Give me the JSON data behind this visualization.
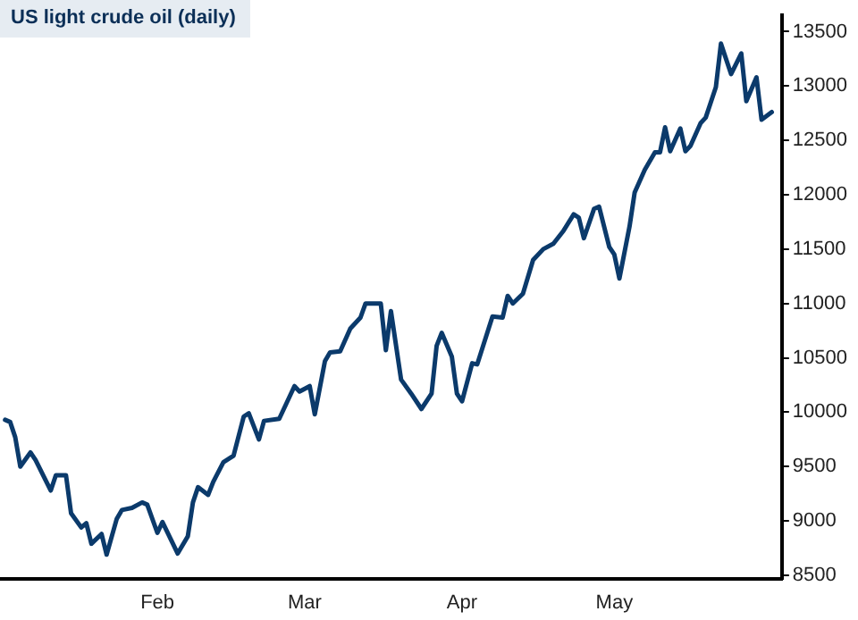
{
  "chart_data": {
    "type": "line",
    "title": "US light crude oil (daily)",
    "color": "#0b3a6b",
    "marker": "none",
    "line_style": "solid",
    "x": [
      "--01-02",
      "--01-03",
      "--01-04",
      "--01-05",
      "--01-07",
      "--01-08",
      "--01-11",
      "--01-12",
      "--01-14",
      "--01-15",
      "--01-17",
      "--01-18",
      "--01-19",
      "--01-21",
      "--01-22",
      "--01-24",
      "--01-25",
      "--01-27",
      "--01-29",
      "--01-30",
      "--02-01",
      "--02-02",
      "--02-05",
      "--02-07",
      "--02-08",
      "--02-09",
      "--02-11",
      "--02-12",
      "--02-14",
      "--02-16",
      "--02-18",
      "--02-19",
      "--02-21",
      "--02-22",
      "--02-25",
      "--02-28",
      "--02-29",
      "--03-02",
      "--03-03",
      "--03-05",
      "--03-06",
      "--03-08",
      "--03-10",
      "--03-12",
      "--03-13",
      "--03-16",
      "--03-17",
      "--03-18",
      "--03-20",
      "--03-22",
      "--03-24",
      "--03-26",
      "--03-27",
      "--03-28",
      "--03-30",
      "--03-31",
      "--04-01",
      "--04-03",
      "--04-04",
      "--04-07",
      "--04-09",
      "--04-10",
      "--04-11",
      "--04-13",
      "--04-15",
      "--04-17",
      "--04-19",
      "--04-21",
      "--04-23",
      "--04-24",
      "--04-25",
      "--04-27",
      "--04-28",
      "--04-30",
      "--05-01",
      "--05-02",
      "--05-04",
      "--05-05",
      "--05-07",
      "--05-09",
      "--05-10",
      "--05-11",
      "--05-12",
      "--05-14",
      "--05-15",
      "--05-16",
      "--05-18",
      "--05-19",
      "--05-21",
      "--05-22",
      "--05-24",
      "--05-26",
      "--05-27",
      "--05-29",
      "--05-30",
      "--06-01"
    ],
    "values": [
      9930,
      9910,
      9770,
      9500,
      9630,
      9560,
      9280,
      9420,
      9420,
      9070,
      8940,
      8980,
      8790,
      8880,
      8690,
      9020,
      9100,
      9120,
      9170,
      9150,
      8890,
      8990,
      8700,
      8860,
      9170,
      9310,
      9240,
      9360,
      9540,
      9600,
      9960,
      9990,
      9750,
      9920,
      9940,
      10240,
      10190,
      10240,
      9980,
      10470,
      10550,
      10560,
      10770,
      10870,
      11000,
      11000,
      10570,
      10930,
      10300,
      10170,
      10030,
      10170,
      10610,
      10730,
      10510,
      10170,
      10100,
      10450,
      10440,
      10880,
      10870,
      11070,
      11000,
      11090,
      11400,
      11500,
      11550,
      11670,
      11820,
      11790,
      11600,
      11870,
      11890,
      11520,
      11450,
      11230,
      11710,
      12020,
      12230,
      12390,
      12390,
      12620,
      12400,
      12610,
      12400,
      12450,
      12660,
      12710,
      12990,
      13390,
      13110,
      13300,
      12860,
      13080,
      12690,
      12760
    ],
    "xlim": [
      "--01-01",
      "--06-03"
    ],
    "xticks": [
      {
        "value": "--02-01",
        "label": "Feb"
      },
      {
        "value": "--03-01",
        "label": "Mar"
      },
      {
        "value": "--04-01",
        "label": "Apr"
      },
      {
        "value": "--05-01",
        "label": "May"
      }
    ],
    "ylim": [
      8470,
      13650
    ],
    "yticks": [
      8500,
      9000,
      9500,
      10000,
      10500,
      11000,
      11500,
      12000,
      12500,
      13000,
      13500
    ]
  }
}
